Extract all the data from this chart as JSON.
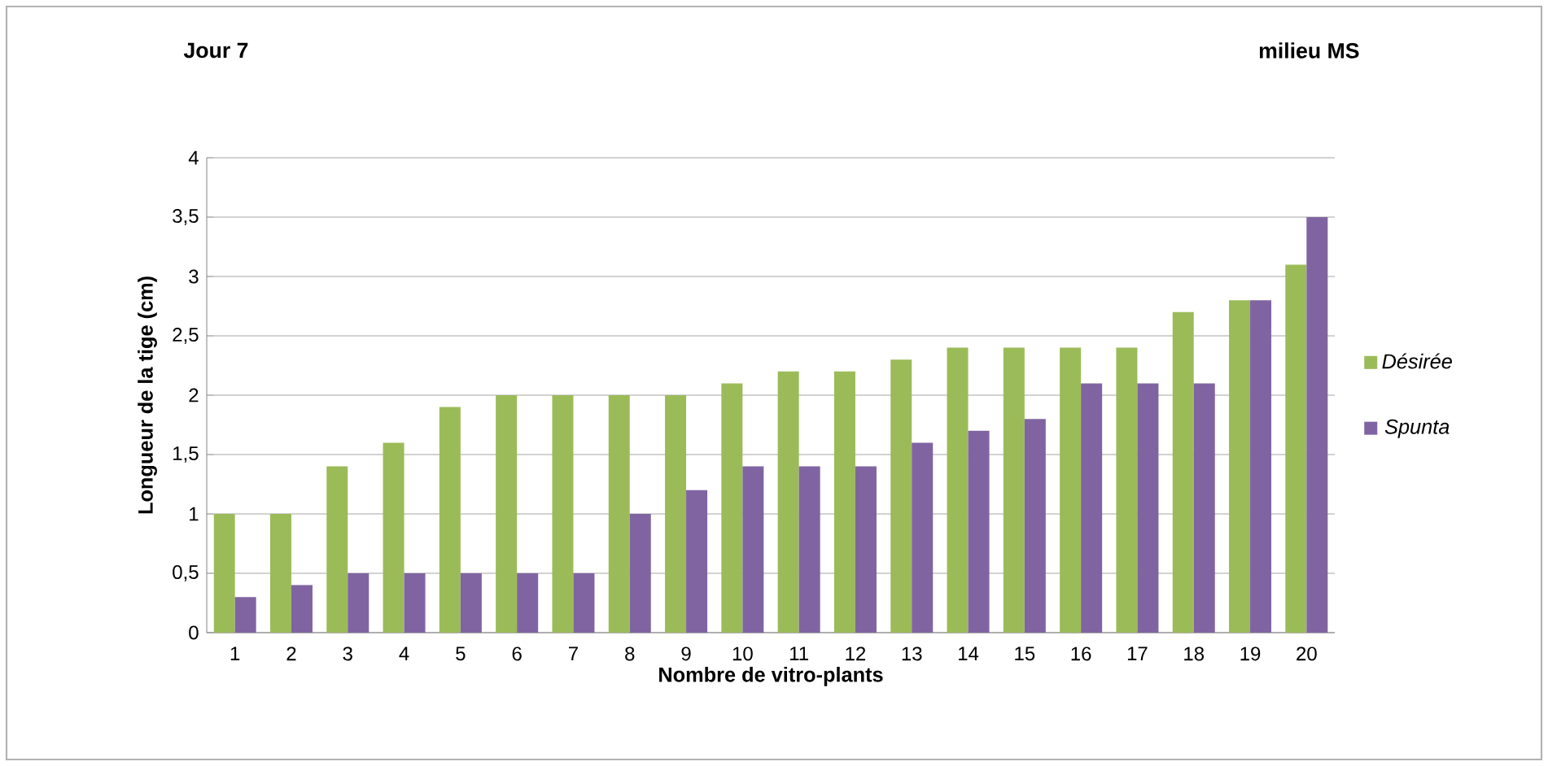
{
  "chart_data": {
    "type": "bar",
    "xlabel": "Nombre de vitro-plants",
    "ylabel": "Longueur de la tige (cm)",
    "annotations": [
      "Jour 7",
      "milieu MS"
    ],
    "categories": [
      "1",
      "2",
      "3",
      "4",
      "5",
      "6",
      "7",
      "8",
      "9",
      "10",
      "11",
      "12",
      "13",
      "14",
      "15",
      "16",
      "17",
      "18",
      "19",
      "20"
    ],
    "series": [
      {
        "name": "Désirée",
        "color": "#9bbb59",
        "values": [
          1,
          1,
          1.4,
          1.6,
          1.9,
          2,
          2,
          2,
          2,
          2.1,
          2.2,
          2.2,
          2.3,
          2.4,
          2.4,
          2.4,
          2.4,
          2.7,
          2.8,
          3.1
        ]
      },
      {
        "name": "Spunta",
        "color": "#8064a2",
        "values": [
          0.3,
          0.4,
          0.5,
          0.5,
          0.5,
          0.5,
          0.5,
          1,
          1.2,
          1.4,
          1.4,
          1.4,
          1.6,
          1.7,
          1.8,
          2.1,
          2.1,
          2.1,
          2.8,
          3.5
        ]
      }
    ],
    "ylim": [
      0,
      4
    ],
    "yticks": [
      0,
      {
        "value": 0.5,
        "label": "0,5"
      },
      1,
      {
        "value": 1.5,
        "label": "1,5"
      },
      2,
      {
        "value": 2.5,
        "label": "2,5"
      },
      3,
      {
        "value": 3.5,
        "label": "3,5"
      },
      4
    ],
    "grid": "y",
    "legend": "right"
  }
}
